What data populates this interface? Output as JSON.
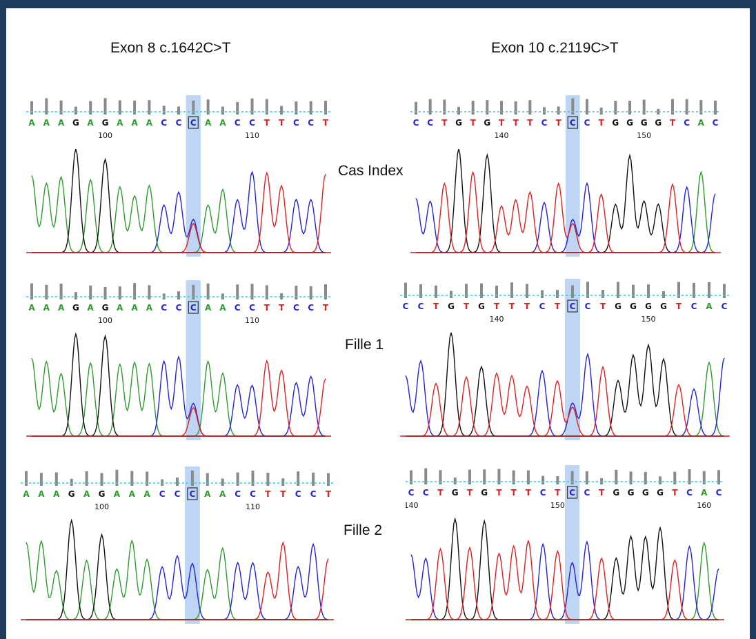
{
  "columns": [
    {
      "title": "Exon 8 c.1642C>T"
    },
    {
      "title": "Exon 10 c.2119C>T"
    }
  ],
  "rows": [
    {
      "label": "Cas Index"
    },
    {
      "label": "Fille 1"
    },
    {
      "label": "Fille 2"
    }
  ],
  "colors": {
    "frame": "#1f3b5c",
    "A": "#2e9b2e",
    "C": "#2323d8",
    "G": "#111111",
    "T": "#e02020",
    "highlight": "#a8c8f0",
    "quality_bar": "#8a8a8a",
    "threshold": "#3fc8c8"
  },
  "panels": [
    {
      "id": "e8-cas",
      "sequence": "AAAGAGAAACCCAACCTTCCT",
      "highlight_index": 11,
      "box_index": 11,
      "het": true,
      "ticks": [
        {
          "index": 5,
          "label": "100"
        },
        {
          "index": 15,
          "label": "110"
        }
      ]
    },
    {
      "id": "e10-cas",
      "sequence": "CCTGTGTTTCTCCTGGGGTCAC",
      "highlight_index": 11,
      "box_index": 11,
      "het": true,
      "ticks": [
        {
          "index": 6,
          "label": "140"
        },
        {
          "index": 16,
          "label": "150"
        }
      ]
    },
    {
      "id": "e8-f1",
      "sequence": "AAAGAGAAACCCAACCTTCCT",
      "highlight_index": 11,
      "box_index": 11,
      "het": true,
      "ticks": [
        {
          "index": 5,
          "label": "100"
        },
        {
          "index": 15,
          "label": "110"
        }
      ]
    },
    {
      "id": "e10-f1",
      "sequence": "CCTGTGTTTCTCCTGGGGTCAC",
      "highlight_index": 11,
      "box_index": 11,
      "het": true,
      "ticks": [
        {
          "index": 6,
          "label": "140"
        },
        {
          "index": 16,
          "label": "150"
        }
      ]
    },
    {
      "id": "e8-f2",
      "sequence": "AAAGAGAAACCCAACCTTCCT",
      "highlight_index": 11,
      "box_index": 11,
      "het": false,
      "ticks": [
        {
          "index": 5,
          "label": "100"
        },
        {
          "index": 15,
          "label": "110"
        }
      ]
    },
    {
      "id": "e10-f2",
      "sequence": "CCTGTGTTTCTCCTGGGGTCAC",
      "highlight_index": 11,
      "box_index": 11,
      "het": false,
      "ticks": [
        {
          "index": 0,
          "label": "140"
        },
        {
          "index": 10,
          "label": "150"
        },
        {
          "index": 20,
          "label": "160"
        }
      ]
    }
  ]
}
